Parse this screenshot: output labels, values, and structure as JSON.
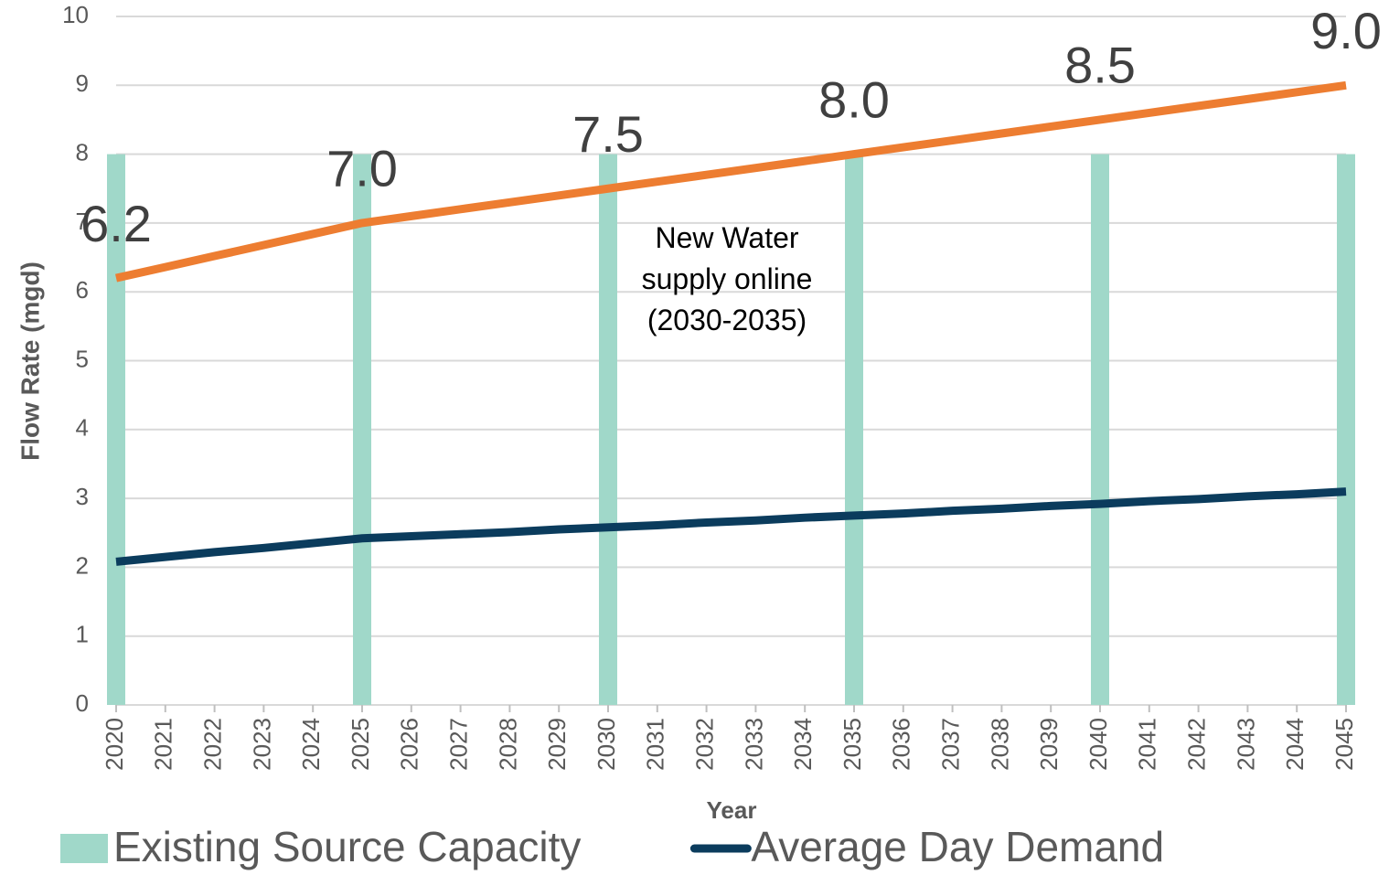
{
  "chart_data": {
    "type": "combo",
    "categories": [
      "2020",
      "2021",
      "2022",
      "2023",
      "2024",
      "2025",
      "2026",
      "2027",
      "2028",
      "2029",
      "2030",
      "2031",
      "2032",
      "2033",
      "2034",
      "2035",
      "2036",
      "2037",
      "2038",
      "2039",
      "2040",
      "2041",
      "2042",
      "2043",
      "2044",
      "2045"
    ],
    "series": [
      {
        "name": "Existing Source Capacity",
        "type": "bar",
        "color": "#a0d8c9",
        "values": [
          8,
          null,
          null,
          null,
          null,
          8,
          null,
          null,
          null,
          null,
          8,
          null,
          null,
          null,
          null,
          8,
          null,
          null,
          null,
          null,
          8,
          null,
          null,
          null,
          null,
          8
        ]
      },
      {
        "type": "line",
        "color": "#ed7d31",
        "values": [
          6.2,
          6.36,
          6.52,
          6.68,
          6.84,
          7.0,
          7.1,
          7.2,
          7.3,
          7.4,
          7.5,
          7.6,
          7.7,
          7.8,
          7.9,
          8.0,
          8.1,
          8.2,
          8.3,
          8.4,
          8.5,
          8.6,
          8.7,
          8.8,
          8.9,
          9.0
        ],
        "value_labels": [
          "6.2",
          null,
          null,
          null,
          null,
          "7.0",
          null,
          null,
          null,
          null,
          "7.5",
          null,
          null,
          null,
          null,
          "8.0",
          null,
          null,
          null,
          null,
          "8.5",
          null,
          null,
          null,
          null,
          "9.0"
        ]
      },
      {
        "name": "Average Day Demand",
        "type": "line",
        "color": "#0b3c5d",
        "values": [
          2.08,
          2.15,
          2.22,
          2.28,
          2.35,
          2.42,
          2.45,
          2.48,
          2.51,
          2.55,
          2.58,
          2.61,
          2.65,
          2.68,
          2.72,
          2.75,
          2.78,
          2.82,
          2.85,
          2.89,
          2.92,
          2.96,
          2.99,
          3.03,
          3.06,
          3.1
        ]
      }
    ],
    "annotation": "New Water supply online (2030-2035)",
    "y_label": "Flow Rate (mgd)",
    "x_label": "Year",
    "ylim": [
      0,
      10
    ],
    "yticks": [
      0,
      1,
      2,
      3,
      4,
      5,
      6,
      7,
      8,
      9,
      10
    ],
    "grid": true
  }
}
